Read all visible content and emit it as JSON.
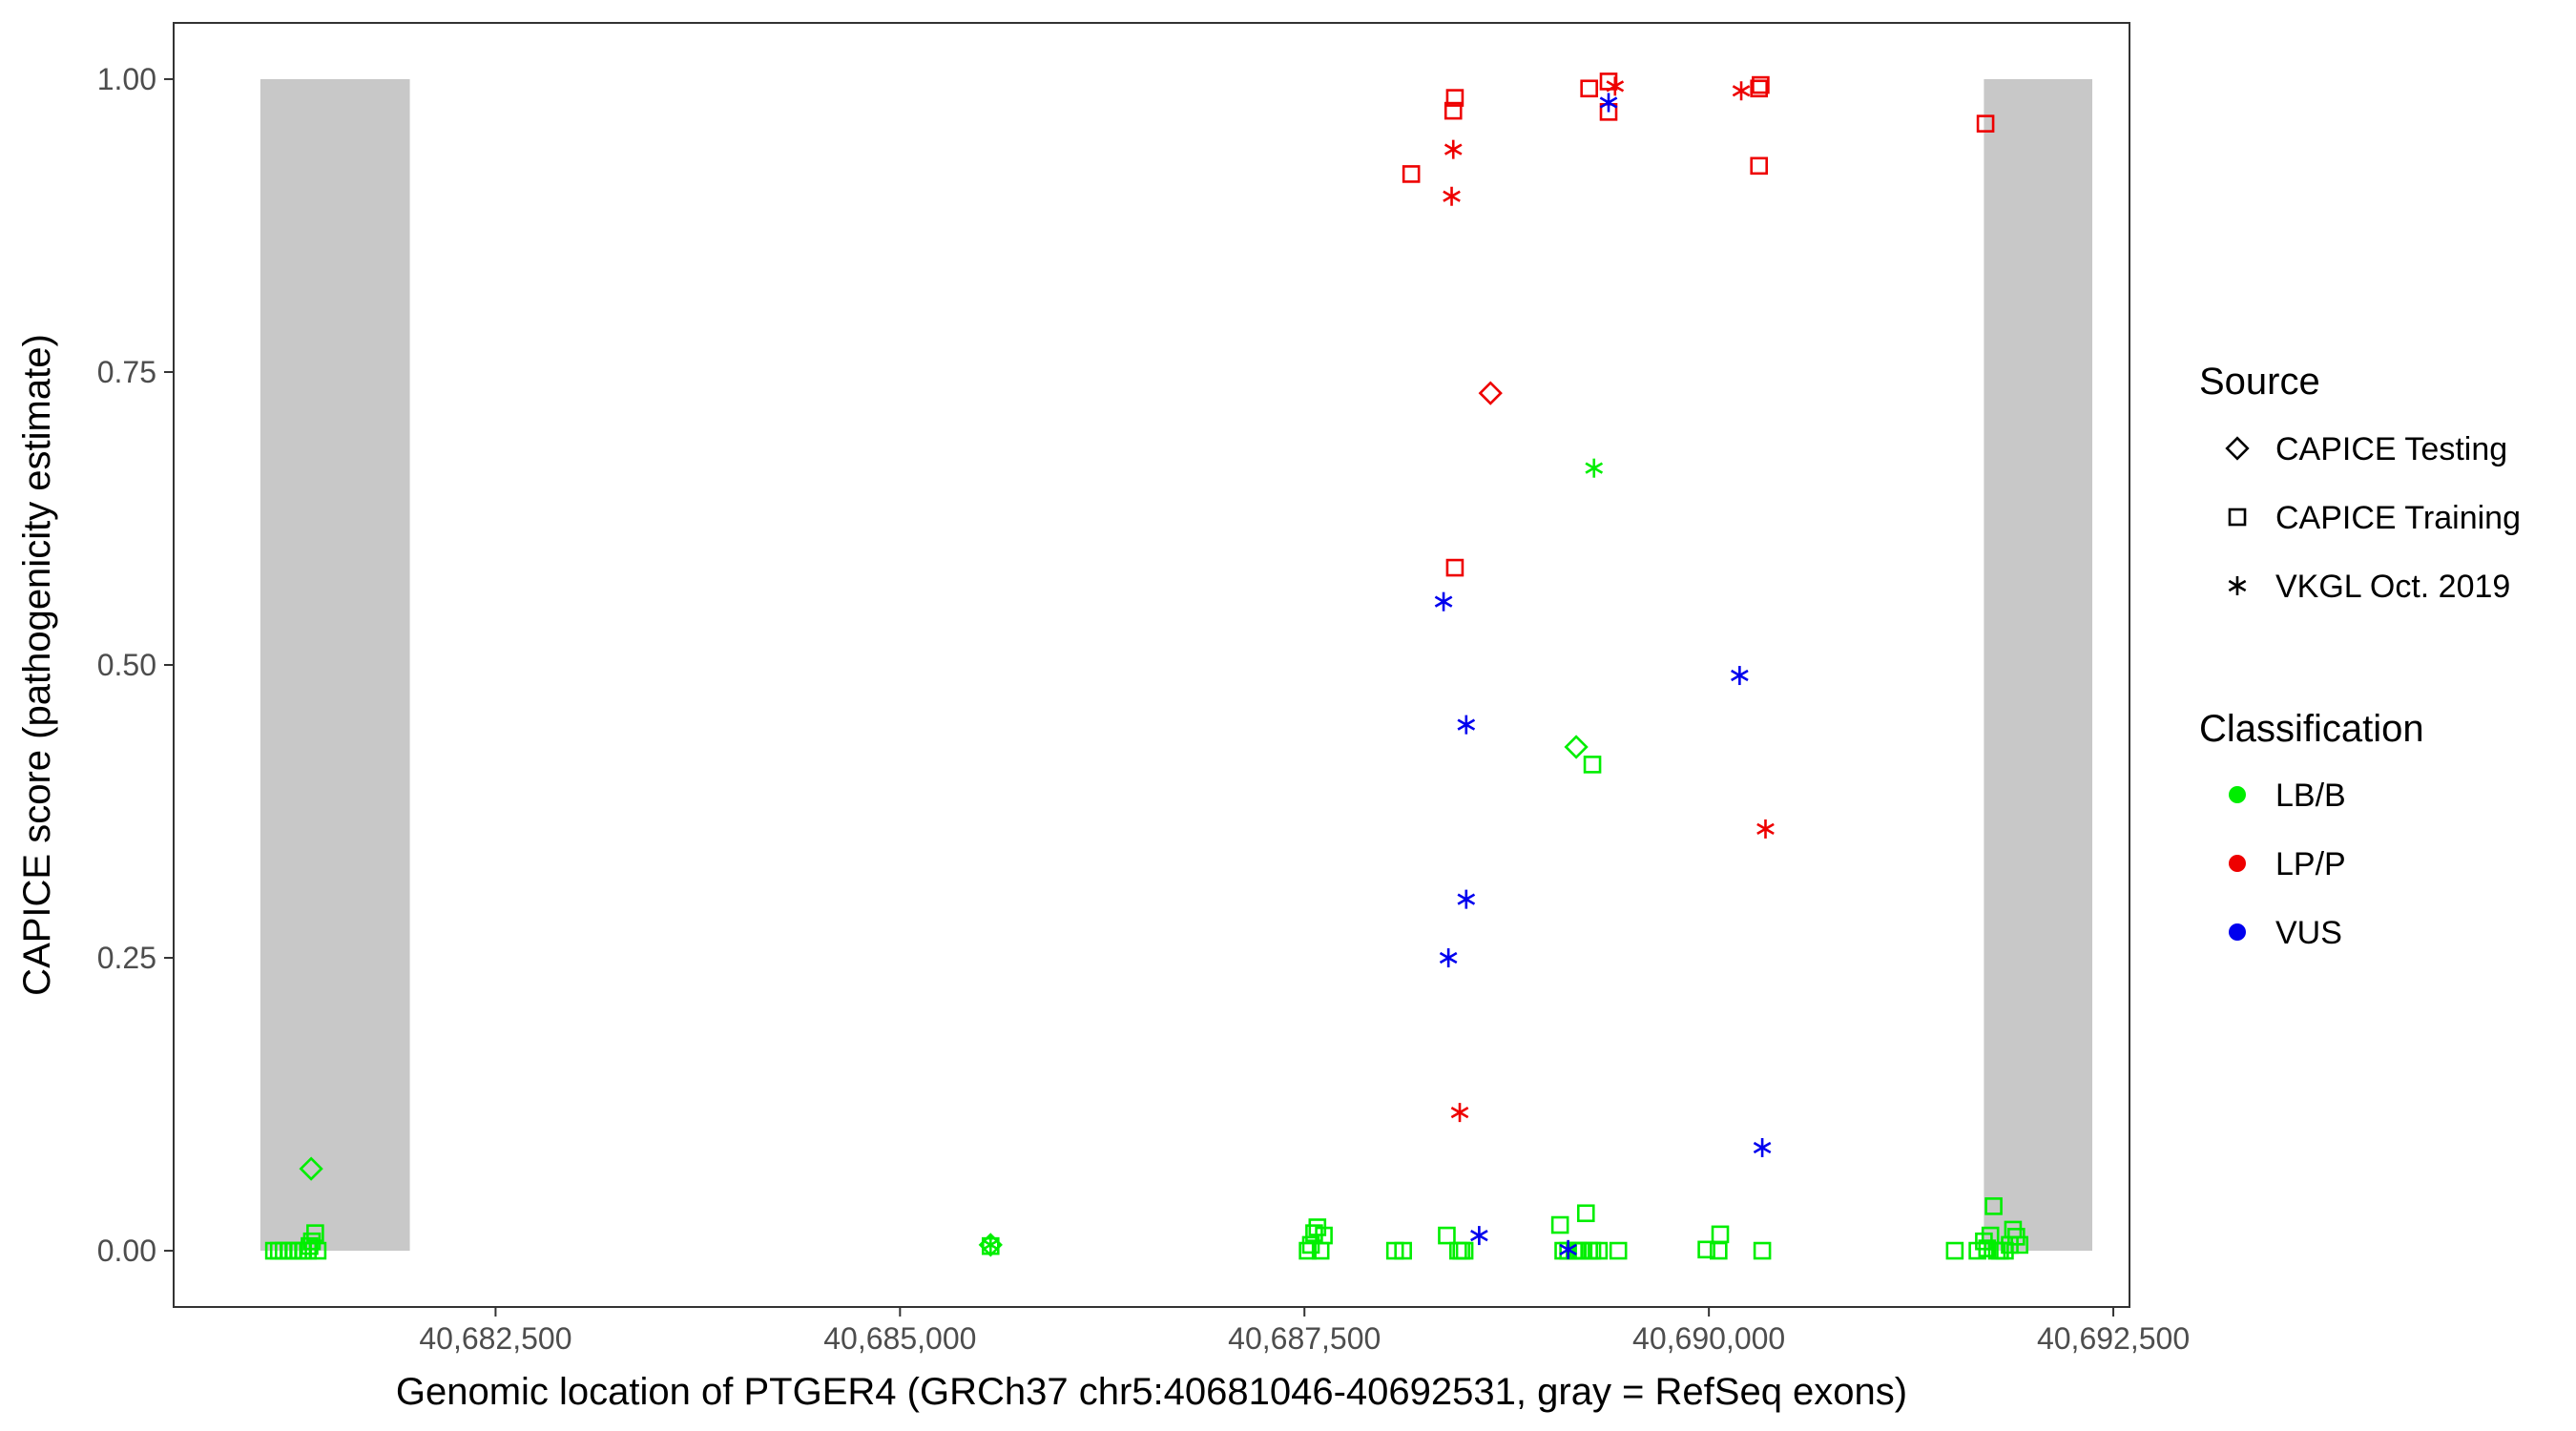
{
  "chart_data": {
    "type": "scatter",
    "xlabel": "Genomic location of PTGER4 (GRCh37 chr5:40681046-40692531, gray = RefSeq exons)",
    "ylabel": "CAPICE score (pathogenicity estimate)",
    "xlim": [
      40680510,
      40692600
    ],
    "ylim": [
      -0.048,
      1.048
    ],
    "x_ticks": [
      40682500,
      40685000,
      40687500,
      40690000,
      40692500
    ],
    "x_tick_labels": [
      "40,682,500",
      "40,685,000",
      "40,687,500",
      "40,690,000",
      "40,692,500"
    ],
    "y_ticks": [
      0,
      0.25,
      0.5,
      0.75,
      1
    ],
    "y_tick_labels": [
      "0.00",
      "0.25",
      "0.50",
      "0.75",
      "1.00"
    ],
    "grid": false,
    "exons": [
      {
        "start": 40681046,
        "end": 40681970,
        "ymin": 0,
        "ymax": 1
      },
      {
        "start": 40691700,
        "end": 40692370,
        "ymin": 0,
        "ymax": 1
      }
    ],
    "colors": {
      "LB/B": "#00ee00",
      "LP/P": "#ee0000",
      "VUS": "#0000ee",
      "exon": "#c8c8c8"
    },
    "legend": {
      "placement": "right",
      "source_title": "Source",
      "source_items": [
        {
          "label": "CAPICE Testing",
          "shape": "diamond"
        },
        {
          "label": "CAPICE Training",
          "shape": "square"
        },
        {
          "label": "VKGL Oct. 2019",
          "shape": "asterisk"
        }
      ],
      "class_title": "Classification",
      "class_items": [
        {
          "label": "LB/B",
          "color": "#00ee00"
        },
        {
          "label": "LP/P",
          "color": "#ee0000"
        },
        {
          "label": "VUS",
          "color": "#0000ee"
        }
      ]
    },
    "series": [
      {
        "name": "CAPICE Training",
        "classification": "LB/B",
        "shape": "square",
        "points": [
          [
            40681130,
            0
          ],
          [
            40681160,
            0
          ],
          [
            40681190,
            0
          ],
          [
            40681220,
            0
          ],
          [
            40681250,
            0
          ],
          [
            40681280,
            0
          ],
          [
            40681310,
            0
          ],
          [
            40681340,
            0
          ],
          [
            40681350,
            0.004
          ],
          [
            40681365,
            0.008
          ],
          [
            40681385,
            0.015
          ],
          [
            40681400,
            0
          ],
          [
            40685560,
            0.004
          ],
          [
            40687520,
            0
          ],
          [
            40687540,
            0.005
          ],
          [
            40687560,
            0.015
          ],
          [
            40687580,
            0.02
          ],
          [
            40687600,
            0
          ],
          [
            40687620,
            0.013
          ],
          [
            40688060,
            0
          ],
          [
            40688110,
            0
          ],
          [
            40688380,
            0.013
          ],
          [
            40688450,
            0
          ],
          [
            40688470,
            0
          ],
          [
            40688490,
            0
          ],
          [
            40689080,
            0.022
          ],
          [
            40689100,
            0
          ],
          [
            40689130,
            0
          ],
          [
            40689170,
            0
          ],
          [
            40689190,
            0
          ],
          [
            40689210,
            0
          ],
          [
            40689240,
            0.032
          ],
          [
            40689260,
            0
          ],
          [
            40689280,
            0
          ],
          [
            40689320,
            0
          ],
          [
            40689440,
            0
          ],
          [
            40689985,
            0.001
          ],
          [
            40690060,
            0
          ],
          [
            40690070,
            0.014
          ],
          [
            40690330,
            0
          ],
          [
            40691520,
            0
          ],
          [
            40691660,
            0
          ],
          [
            40691700,
            0.008
          ],
          [
            40691720,
            0.002
          ],
          [
            40691740,
            0.013
          ],
          [
            40691760,
            0.038
          ],
          [
            40691780,
            0
          ],
          [
            40691800,
            0
          ],
          [
            40691830,
            0
          ],
          [
            40691860,
            0.005
          ],
          [
            40691880,
            0.018
          ],
          [
            40691900,
            0.012
          ],
          [
            40691920,
            0.005
          ],
          [
            40689280,
            0.415
          ]
        ]
      },
      {
        "name": "CAPICE Training",
        "classification": "LP/P",
        "shape": "square",
        "points": [
          [
            40688430,
            0.984
          ],
          [
            40688420,
            0.973
          ],
          [
            40688160,
            0.919
          ],
          [
            40688430,
            0.583
          ],
          [
            40689260,
            0.992
          ],
          [
            40689380,
            0.998
          ],
          [
            40689380,
            0.972
          ],
          [
            40690320,
            0.995
          ],
          [
            40690310,
            0.992
          ],
          [
            40690310,
            0.926
          ],
          [
            40691710,
            0.962
          ]
        ]
      },
      {
        "name": "CAPICE Testing",
        "classification": "LB/B",
        "shape": "diamond",
        "points": [
          [
            40681360,
            0.07
          ],
          [
            40685560,
            0.005
          ],
          [
            40689180,
            0.43
          ]
        ]
      },
      {
        "name": "CAPICE Testing",
        "classification": "LP/P",
        "shape": "diamond",
        "points": [
          [
            40688650,
            0.732
          ]
        ]
      },
      {
        "name": "VKGL Oct. 2019",
        "classification": "LB/B",
        "shape": "asterisk",
        "points": [
          [
            40685560,
            0.005
          ],
          [
            40689290,
            0.668
          ]
        ]
      },
      {
        "name": "VKGL Oct. 2019",
        "classification": "LP/P",
        "shape": "asterisk",
        "points": [
          [
            40688420,
            0.94
          ],
          [
            40688410,
            0.9
          ],
          [
            40688460,
            0.118
          ],
          [
            40689420,
            0.994
          ],
          [
            40690200,
            0.99
          ],
          [
            40690350,
            0.36
          ]
        ]
      },
      {
        "name": "VKGL Oct. 2019",
        "classification": "VUS",
        "shape": "asterisk",
        "points": [
          [
            40688360,
            0.554
          ],
          [
            40688500,
            0.449
          ],
          [
            40688500,
            0.3
          ],
          [
            40688390,
            0.25
          ],
          [
            40688580,
            0.013
          ],
          [
            40689130,
            0.001
          ],
          [
            40689380,
            0.98
          ],
          [
            40690190,
            0.491
          ],
          [
            40690330,
            0.088
          ]
        ]
      }
    ]
  }
}
